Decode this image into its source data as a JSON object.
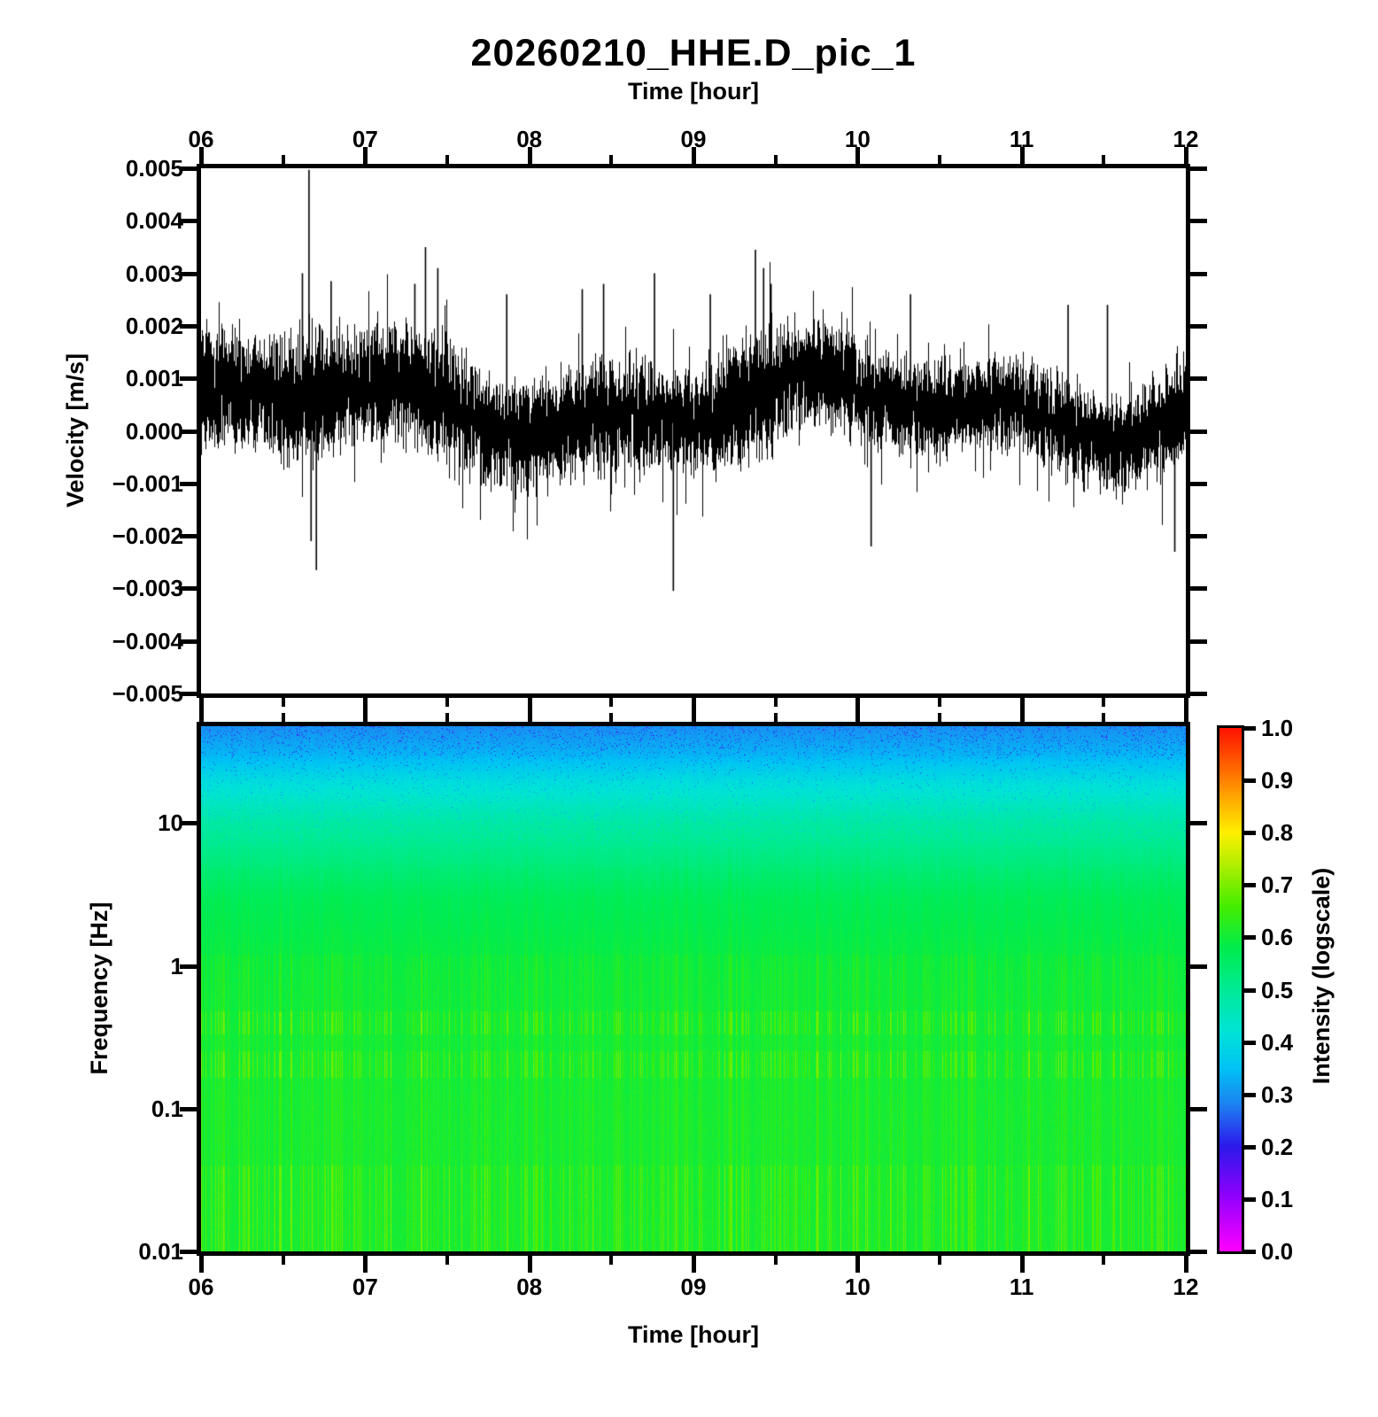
{
  "title": "20260210_HHE.D_pic_1",
  "axes": {
    "time_label_top": "Time [hour]",
    "time_label_bottom": "Time [hour]",
    "hour_tick_labels": [
      "06",
      "07",
      "08",
      "09",
      "10",
      "11",
      "12"
    ],
    "hour_ticks": [
      6,
      7,
      8,
      9,
      10,
      11,
      12
    ],
    "hour_minor_ticks": [
      6.5,
      7.5,
      8.5,
      9.5,
      10.5,
      11.5
    ],
    "velocity_label": "Velocity [m/s]",
    "velocity_tick_labels": [
      "0.005",
      "0.004",
      "0.003",
      "0.002",
      "0.001",
      "0.000",
      "−0.001",
      "−0.002",
      "−0.003",
      "−0.004",
      "−0.005"
    ],
    "velocity_ticks": [
      0.005,
      0.004,
      0.003,
      0.002,
      0.001,
      0.0,
      -0.001,
      -0.002,
      -0.003,
      -0.004,
      -0.005
    ],
    "frequency_label": "Frequency [Hz]",
    "frequency_tick_labels": [
      "10",
      "1",
      "0.1",
      "0.01"
    ],
    "frequency_ticks": [
      10,
      1,
      0.1,
      0.01
    ]
  },
  "colorbar": {
    "label": "Intensity (logscale)",
    "tick_labels": [
      "1.0",
      "0.9",
      "0.8",
      "0.7",
      "0.6",
      "0.5",
      "0.4",
      "0.3",
      "0.2",
      "0.1",
      "0.0"
    ],
    "range": [
      0.0,
      1.0
    ],
    "stops": [
      [
        0.0,
        "#ff00ff"
      ],
      [
        0.1,
        "#9600ff"
      ],
      [
        0.2,
        "#2d19eb"
      ],
      [
        0.28,
        "#1e82f2"
      ],
      [
        0.35,
        "#00c3f5"
      ],
      [
        0.42,
        "#00e4d7"
      ],
      [
        0.5,
        "#00eb96"
      ],
      [
        0.58,
        "#00ec4e"
      ],
      [
        0.66,
        "#46ee00"
      ],
      [
        0.73,
        "#a5ee00"
      ],
      [
        0.8,
        "#fff000"
      ],
      [
        0.88,
        "#ff9b00"
      ],
      [
        0.94,
        "#ff5500"
      ],
      [
        1.0,
        "#ff1400"
      ]
    ]
  },
  "chart_data": [
    {
      "type": "line",
      "title": "20260210_HHE.D_pic_1",
      "xlabel": "Time [hour]",
      "ylabel": "Velocity [m/s]",
      "xlim": [
        6,
        12
      ],
      "ylim": [
        -0.005,
        0.005
      ],
      "line_color": "#000000",
      "grid": false,
      "noise_mean": 0.00045,
      "noise_std": 0.00068,
      "drift": {
        "amp1": 0.00042,
        "freq1": 2.0,
        "phase1": 0.7,
        "amp2": 0.00026,
        "freq2": 5.1,
        "phase2": 2.3
      },
      "envelope_step_hours": 0.25,
      "envelope": [
        1.15,
        1.1,
        1.25,
        1.3,
        1.1,
        1.15,
        1.2,
        1.05,
        1.0,
        1.05,
        1.1,
        1.05,
        0.95,
        1.15,
        1.2,
        1.0,
        1.0,
        0.95,
        0.9,
        0.85,
        0.95,
        1.0,
        0.95,
        0.95,
        0.9
      ],
      "spikes": [
        [
          6.615,
          0.003
        ],
        [
          6.655,
          0.00497
        ],
        [
          6.668,
          -0.0021
        ],
        [
          6.7,
          -0.00265
        ],
        [
          6.79,
          0.00285
        ],
        [
          7.3,
          0.0028
        ],
        [
          7.365,
          0.0035
        ],
        [
          7.44,
          0.0031
        ],
        [
          7.86,
          0.0026
        ],
        [
          8.32,
          0.0027
        ],
        [
          8.45,
          0.0028
        ],
        [
          8.76,
          0.003
        ],
        [
          8.875,
          -0.00305
        ],
        [
          9.1,
          0.0026
        ],
        [
          9.375,
          0.00345
        ],
        [
          9.425,
          0.0031
        ],
        [
          9.47,
          0.0028
        ],
        [
          10.08,
          -0.0022
        ],
        [
          10.32,
          0.0026
        ],
        [
          11.28,
          0.0024
        ],
        [
          11.52,
          0.0024
        ],
        [
          11.93,
          -0.0023
        ]
      ],
      "seed": 1234
    },
    {
      "type": "heatmap",
      "xlabel": "Time [hour]",
      "ylabel": "Frequency [Hz]",
      "xlim": [
        6,
        12
      ],
      "ylim": [
        0.01,
        47.6
      ],
      "yscale": "log",
      "colorbar_label": "Intensity (logscale)",
      "colorbar_range": [
        0.0,
        1.0
      ],
      "intensity_base_profile": [
        [
          47.6,
          0.295
        ],
        [
          30,
          0.335
        ],
        [
          20,
          0.4
        ],
        [
          10,
          0.48
        ],
        [
          3,
          0.565
        ],
        [
          1,
          0.59
        ],
        [
          0.1,
          0.601
        ],
        [
          0.01,
          0.601
        ]
      ],
      "stripe_bands": [
        {
          "f_lo": 0.33,
          "f_hi": 0.48,
          "strength": 1.0
        },
        {
          "f_lo": 0.165,
          "f_hi": 0.25,
          "strength": 1.0
        },
        {
          "f_lo": 0.01,
          "f_hi": 0.04,
          "strength": 0.9
        },
        {
          "f_lo": 0.04,
          "f_hi": 0.165,
          "strength": 0.45
        },
        {
          "f_lo": 0.25,
          "f_hi": 0.33,
          "strength": 0.45
        },
        {
          "f_lo": 0.48,
          "f_hi": 1.2,
          "strength": 0.45
        },
        {
          "f_lo": 1.2,
          "f_hi": 5.0,
          "strength": 0.22
        },
        {
          "f_lo": 5.0,
          "f_hi": 20.0,
          "strength": 0.12
        }
      ],
      "stripe_gain": 0.11,
      "speckle_min_freq": 7.0,
      "seed": 99
    }
  ]
}
